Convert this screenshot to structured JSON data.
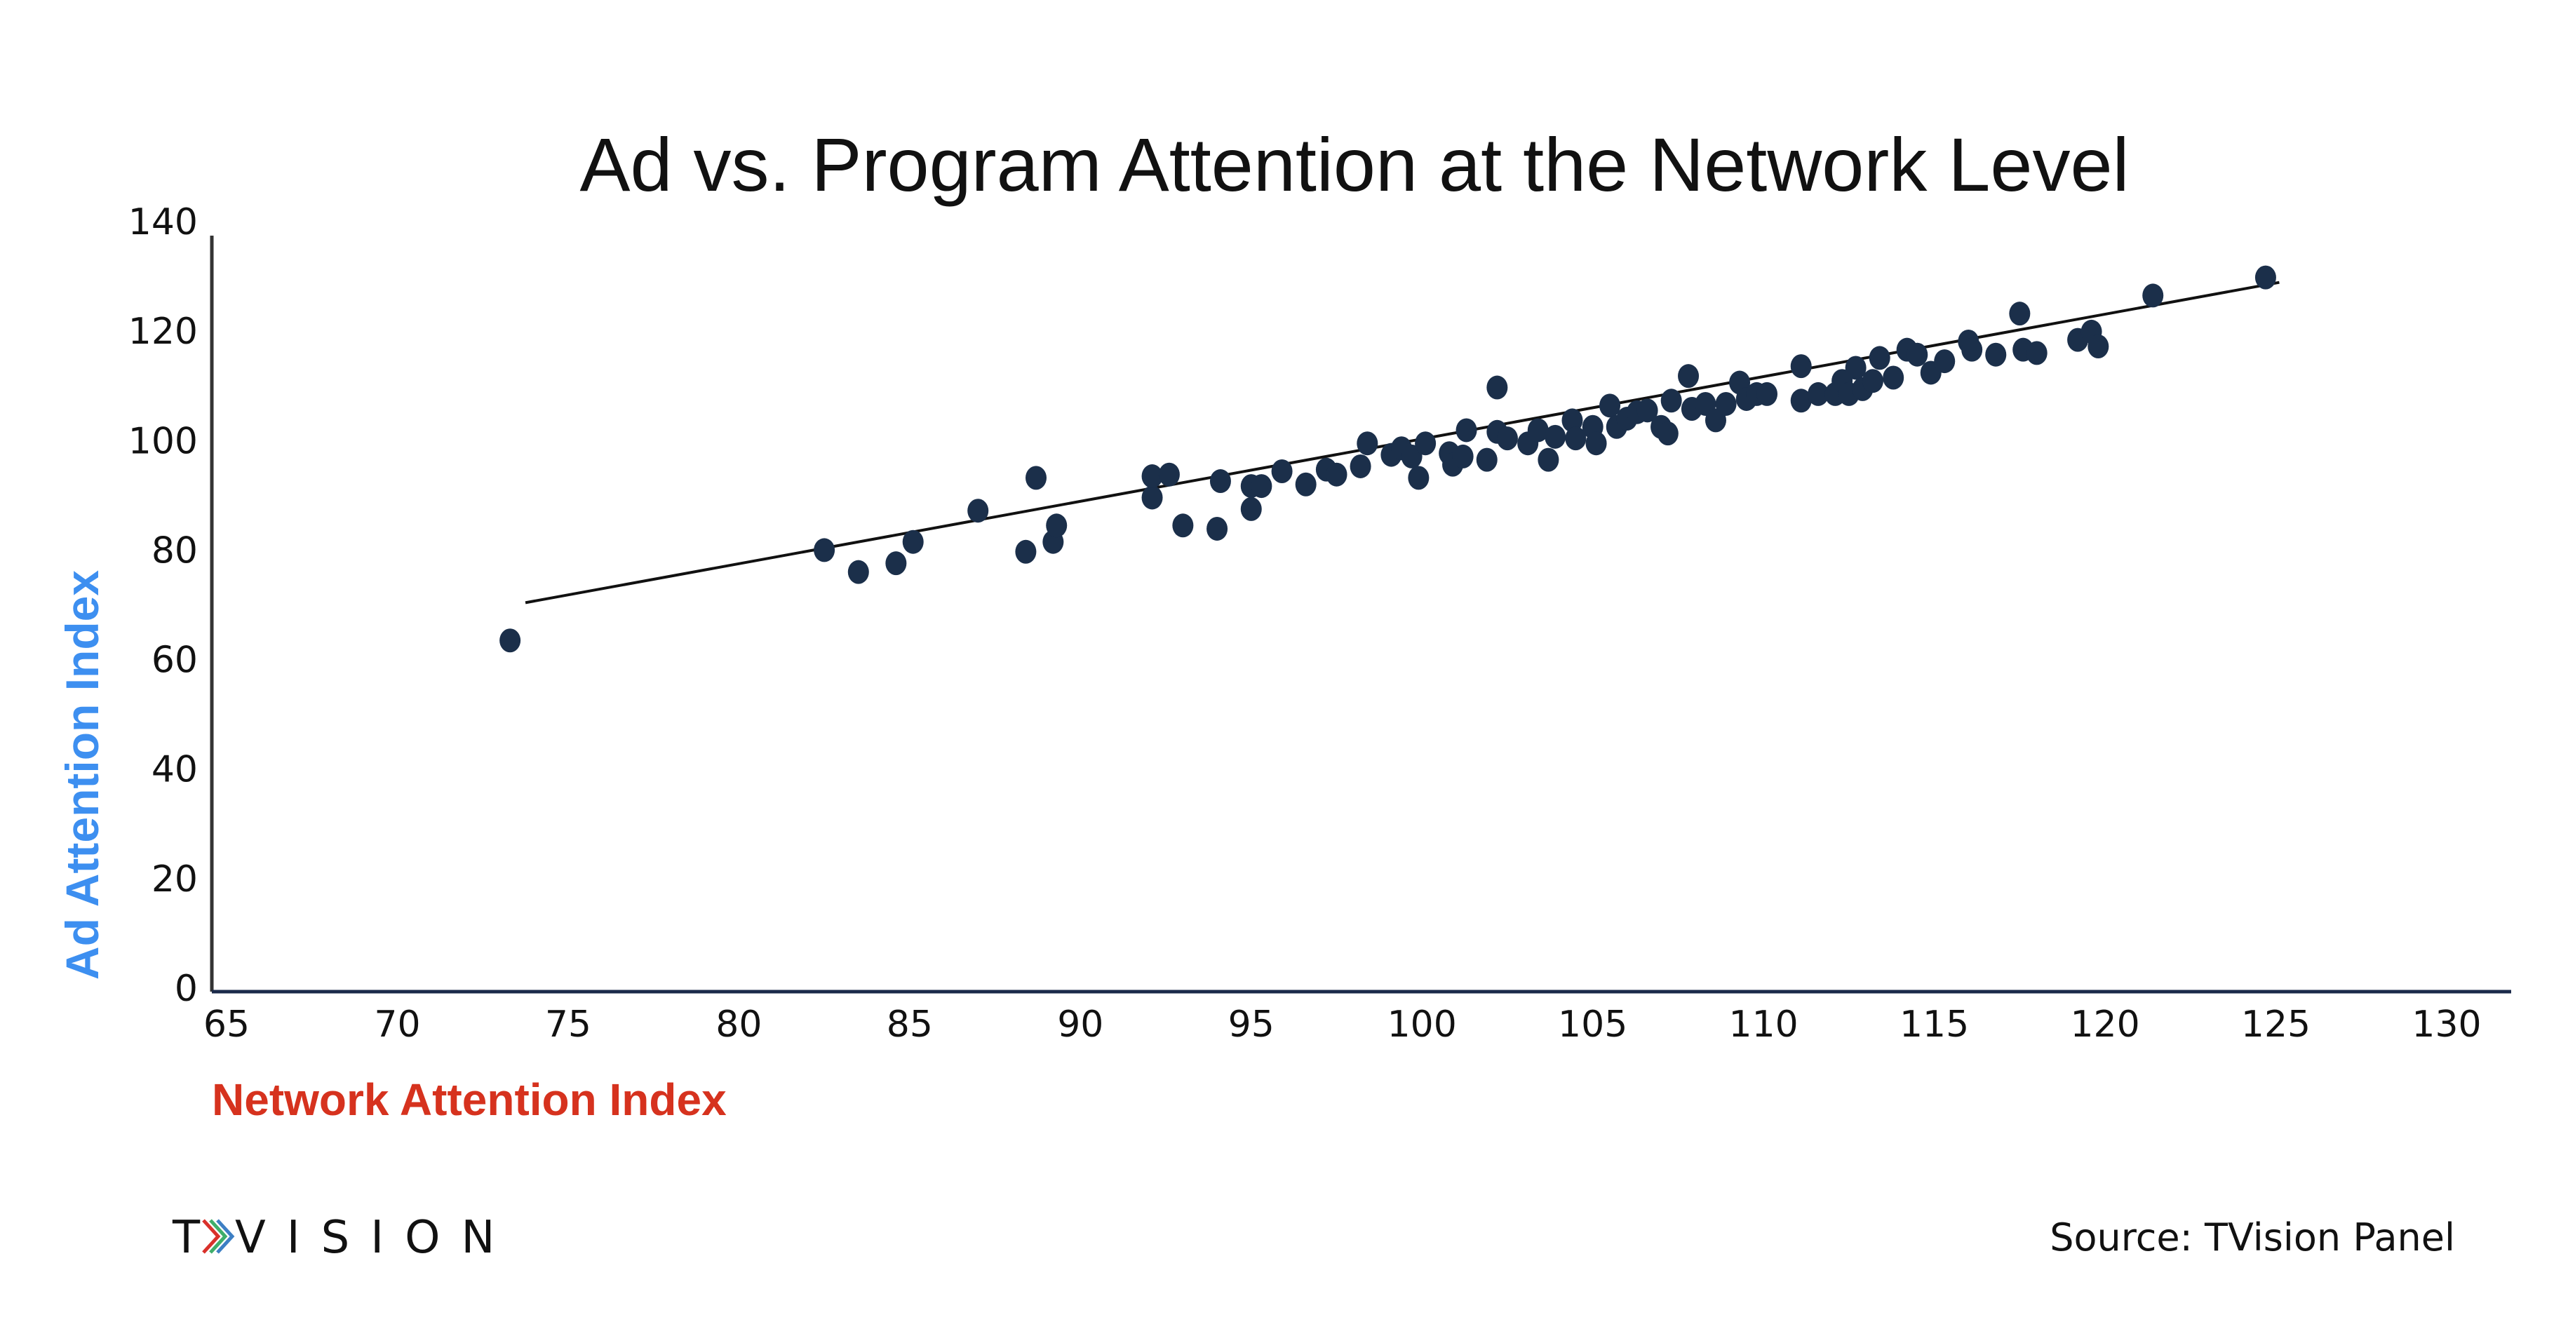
{
  "chart_data": {
    "type": "scatter",
    "title": "Ad vs. Program Attention at the Network Level",
    "xlabel": "Network Attention Index",
    "ylabel": "Ad Attention Index",
    "xlim": [
      65,
      130
    ],
    "ylim": [
      0,
      140
    ],
    "x_ticks": [
      65,
      70,
      75,
      80,
      85,
      90,
      95,
      100,
      105,
      110,
      115,
      120,
      125,
      130
    ],
    "y_ticks": [
      0,
      20,
      40,
      60,
      80,
      100,
      120,
      140
    ],
    "grid": false,
    "legend": "none",
    "trendline": {
      "x": [
        73.75,
        125.1
      ],
      "y": [
        70.4,
        128.9
      ]
    },
    "colors": {
      "points": "#1b2f4a",
      "trendline": "#111111",
      "xlabel": "#d6321e",
      "ylabel": "#3d8ff0",
      "axis": "#1b2a4a"
    },
    "points": [
      [
        73.3,
        63.5
      ],
      [
        82.5,
        80
      ],
      [
        83.5,
        76
      ],
      [
        84.6,
        77.6
      ],
      [
        85.1,
        81.5
      ],
      [
        87.0,
        87.2
      ],
      [
        88.4,
        79.7
      ],
      [
        88.7,
        93.2
      ],
      [
        89.2,
        81.5
      ],
      [
        89.3,
        84.5
      ],
      [
        92.1,
        89.6
      ],
      [
        92.1,
        93.5
      ],
      [
        92.6,
        93.8
      ],
      [
        93.0,
        84.5
      ],
      [
        94.0,
        83.9
      ],
      [
        94.1,
        92.6
      ],
      [
        95.0,
        87.5
      ],
      [
        95.0,
        91.7
      ],
      [
        95.3,
        91.7
      ],
      [
        95.9,
        94.4
      ],
      [
        96.6,
        92.0
      ],
      [
        97.2,
        94.7
      ],
      [
        97.5,
        93.8
      ],
      [
        98.2,
        95.3
      ],
      [
        98.4,
        99.5
      ],
      [
        99.1,
        97.4
      ],
      [
        99.4,
        98.6
      ],
      [
        99.7,
        97.1
      ],
      [
        99.9,
        93.2
      ],
      [
        100.1,
        99.5
      ],
      [
        100.8,
        97.7
      ],
      [
        100.9,
        95.6
      ],
      [
        101.2,
        97.1
      ],
      [
        101.3,
        101.9
      ],
      [
        101.9,
        96.5
      ],
      [
        102.2,
        109.7
      ],
      [
        102.2,
        101.6
      ],
      [
        102.5,
        100.4
      ],
      [
        103.1,
        99.5
      ],
      [
        103.4,
        101.9
      ],
      [
        103.7,
        96.5
      ],
      [
        103.9,
        100.7
      ],
      [
        104.4,
        103.7
      ],
      [
        104.5,
        100.4
      ],
      [
        105.0,
        102.5
      ],
      [
        105.1,
        99.5
      ],
      [
        105.5,
        106.4
      ],
      [
        105.7,
        102.5
      ],
      [
        106.0,
        104.0
      ],
      [
        106.3,
        105.2
      ],
      [
        106.6,
        105.5
      ],
      [
        107.0,
        102.5
      ],
      [
        107.2,
        101.3
      ],
      [
        107.3,
        107.3
      ],
      [
        107.8,
        111.8
      ],
      [
        107.9,
        105.8
      ],
      [
        108.3,
        106.7
      ],
      [
        108.6,
        103.7
      ],
      [
        108.9,
        106.7
      ],
      [
        109.3,
        110.6
      ],
      [
        109.5,
        107.6
      ],
      [
        109.8,
        108.5
      ],
      [
        110.1,
        108.5
      ],
      [
        111.1,
        113.6
      ],
      [
        111.1,
        107.3
      ],
      [
        111.6,
        108.5
      ],
      [
        112.1,
        108.5
      ],
      [
        112.3,
        110.9
      ],
      [
        112.5,
        108.5
      ],
      [
        112.7,
        113.3
      ],
      [
        112.9,
        109.4
      ],
      [
        113.2,
        110.9
      ],
      [
        113.4,
        115.1
      ],
      [
        113.8,
        111.5
      ],
      [
        114.2,
        116.6
      ],
      [
        114.5,
        115.7
      ],
      [
        114.9,
        112.4
      ],
      [
        115.3,
        114.5
      ],
      [
        116.0,
        118.1
      ],
      [
        116.1,
        116.6
      ],
      [
        116.8,
        115.7
      ],
      [
        117.5,
        123.2
      ],
      [
        117.6,
        116.6
      ],
      [
        118.0,
        116.0
      ],
      [
        119.2,
        118.4
      ],
      [
        119.6,
        119.9
      ],
      [
        119.8,
        117.2
      ],
      [
        121.4,
        126.5
      ],
      [
        124.7,
        129.8
      ]
    ]
  },
  "footer": {
    "logo_text": "TVISION",
    "logo_colors": [
      "#d9312b",
      "#3fae6a",
      "#3d7fc4"
    ],
    "source": "Source: TVision Panel"
  }
}
